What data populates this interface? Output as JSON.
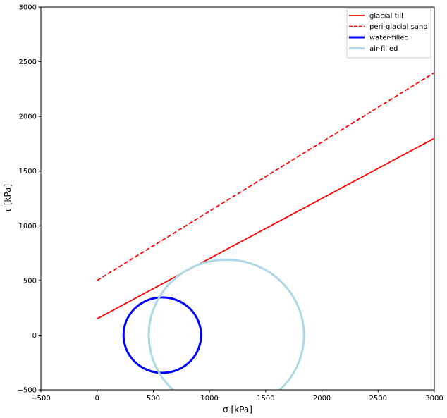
{
  "chart_data": {
    "type": "line",
    "title": "",
    "xlabel": "σ [kPa]",
    "ylabel": "τ [kPa]",
    "xlim": [
      -500,
      3000
    ],
    "ylim": [
      -500,
      3000
    ],
    "xticks": [
      -500,
      0,
      500,
      1000,
      1500,
      2000,
      2500,
      3000
    ],
    "yticks": [
      -500,
      0,
      500,
      1000,
      1500,
      2000,
      2500,
      3000
    ],
    "grid": false,
    "legend_position": "top-right",
    "series": [
      {
        "name": "glacial till",
        "kind": "line",
        "style": "solid",
        "color": "#ff0000",
        "x": [
          0,
          3000
        ],
        "y": [
          150,
          1800
        ]
      },
      {
        "name": "peri-glacial sand",
        "kind": "line",
        "style": "dashed",
        "color": "#ff0000",
        "x": [
          0,
          3000
        ],
        "y": [
          500,
          2400
        ]
      },
      {
        "name": "water-filled",
        "kind": "circle",
        "style": "solid",
        "color": "#0000ff",
        "center": [
          580,
          0
        ],
        "radius": 345
      },
      {
        "name": "air-filled",
        "kind": "circle",
        "style": "solid",
        "color": "#add8e6",
        "center": [
          1150,
          0
        ],
        "radius": 690
      }
    ]
  }
}
